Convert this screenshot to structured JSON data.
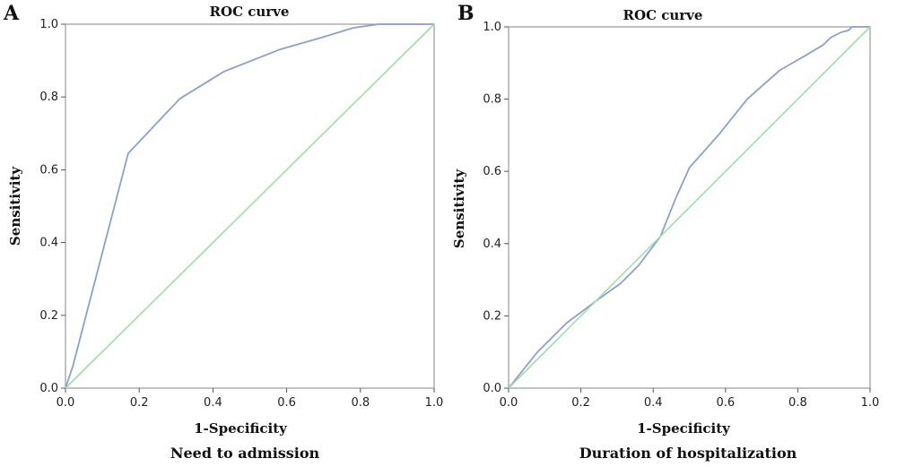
{
  "chart_data": [
    {
      "type": "line",
      "panel_label": "A",
      "title": "ROC curve",
      "xlabel": "1-Specificity",
      "ylabel": "Sensitivity",
      "caption": "Need to admission",
      "xlim": [
        0,
        1
      ],
      "ylim": [
        0,
        1
      ],
      "xticks": [
        "0.0",
        "0.2",
        "0.4",
        "0.6",
        "0.8",
        "1.0"
      ],
      "yticks": [
        "0.0",
        "0.2",
        "0.4",
        "0.6",
        "0.8",
        "1.0"
      ],
      "grid": false,
      "series": [
        {
          "color": "#8c9fd0",
          "points": [
            [
              0.0,
              0.0
            ],
            [
              0.02,
              0.06
            ],
            [
              0.17,
              0.645
            ],
            [
              0.31,
              0.795
            ],
            [
              0.43,
              0.87
            ],
            [
              0.58,
              0.93
            ],
            [
              0.7,
              0.965
            ],
            [
              0.78,
              0.99
            ],
            [
              0.85,
              1.0
            ],
            [
              1.0,
              1.0
            ]
          ]
        },
        {
          "color": "#9ce0a0",
          "points": [
            [
              0.0,
              0.0
            ],
            [
              1.0,
              1.0
            ]
          ]
        }
      ]
    },
    {
      "type": "line",
      "panel_label": "B",
      "title": "ROC curve",
      "xlabel": "1-Specificity",
      "ylabel": "Sensitivity",
      "caption": "Duration of hospitalization",
      "xlim": [
        0,
        1
      ],
      "ylim": [
        0,
        1
      ],
      "xticks": [
        "0.0",
        "0.2",
        "0.4",
        "0.6",
        "0.8",
        "1.0"
      ],
      "yticks": [
        "0.0",
        "0.2",
        "0.4",
        "0.6",
        "0.8",
        "1.0"
      ],
      "grid": false,
      "series": [
        {
          "color": "#9a9ed2",
          "points": [
            [
              0.0,
              0.0
            ],
            [
              0.08,
              0.1
            ],
            [
              0.16,
              0.18
            ],
            [
              0.24,
              0.24
            ],
            [
              0.31,
              0.29
            ],
            [
              0.36,
              0.34
            ],
            [
              0.42,
              0.42
            ],
            [
              0.46,
              0.52
            ],
            [
              0.5,
              0.61
            ],
            [
              0.58,
              0.7
            ],
            [
              0.66,
              0.8
            ],
            [
              0.75,
              0.88
            ],
            [
              0.82,
              0.92
            ],
            [
              0.87,
              0.95
            ],
            [
              0.89,
              0.97
            ],
            [
              0.92,
              0.985
            ],
            [
              0.94,
              0.99
            ],
            [
              0.95,
              1.0
            ],
            [
              1.0,
              1.0
            ]
          ]
        },
        {
          "color": "#a8e4ac",
          "points": [
            [
              0.0,
              0.0
            ],
            [
              1.0,
              1.0
            ]
          ]
        }
      ]
    }
  ]
}
